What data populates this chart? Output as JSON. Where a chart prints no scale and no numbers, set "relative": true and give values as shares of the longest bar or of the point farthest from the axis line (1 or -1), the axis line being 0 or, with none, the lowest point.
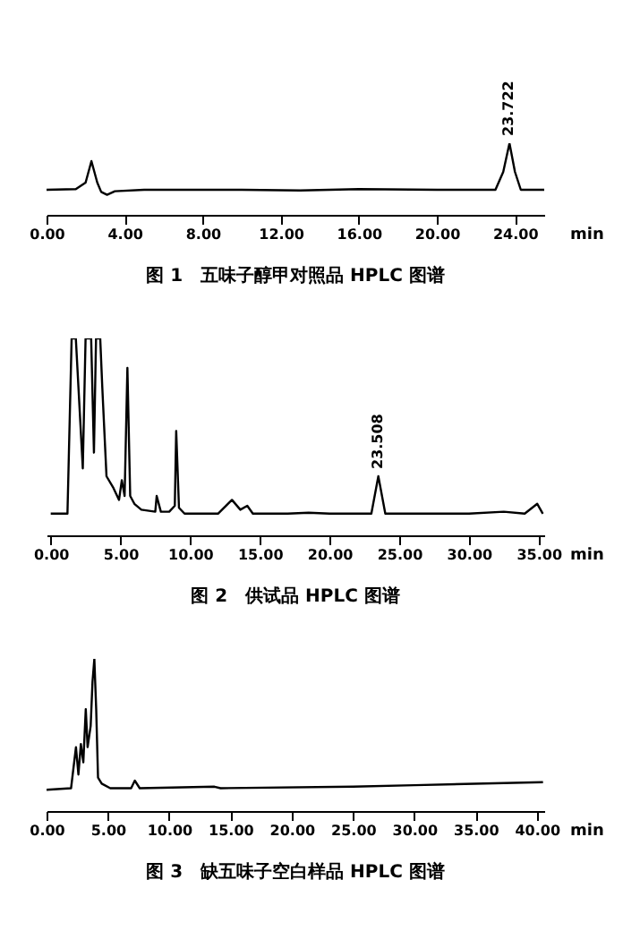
{
  "chart_data": [
    {
      "type": "line",
      "title": "图 1　五味子醇甲对照品 HPLC 图谱",
      "xlabel": "min",
      "relative": true,
      "grid": false,
      "line_style": "solid",
      "xlim": [
        0,
        25.5
      ],
      "xticks": [
        {
          "value": 0,
          "label": "0.00"
        },
        {
          "value": 4,
          "label": "4.00"
        },
        {
          "value": 8,
          "label": "8.00"
        },
        {
          "value": 12,
          "label": "12.00"
        },
        {
          "value": 16,
          "label": "16.00"
        },
        {
          "value": 20,
          "label": "20.00"
        },
        {
          "value": 24,
          "label": "24.00"
        }
      ],
      "x": [
        0,
        1.5,
        2.0,
        2.3,
        2.6,
        2.8,
        3.1,
        3.5,
        5,
        10,
        13,
        16,
        20,
        23.0,
        23.4,
        23.72,
        24.0,
        24.3,
        25.5
      ],
      "series": [
        {
          "color": "#000000",
          "values": [
            0.35,
            0.36,
            0.45,
            0.75,
            0.45,
            0.32,
            0.28,
            0.33,
            0.35,
            0.35,
            0.34,
            0.36,
            0.35,
            0.35,
            0.6,
            1.0,
            0.6,
            0.35,
            0.35
          ]
        }
      ],
      "annotations": [
        {
          "text": "23.722",
          "x": 23.722,
          "y": 1.0
        }
      ]
    },
    {
      "type": "line",
      "title": "图 2　供试品 HPLC 图谱",
      "xlabel": "min",
      "relative": true,
      "grid": false,
      "line_style": "solid",
      "xlim": [
        -0.3,
        35.4
      ],
      "xticks": [
        {
          "value": 0,
          "label": "0.00"
        },
        {
          "value": 5,
          "label": "5.00"
        },
        {
          "value": 10,
          "label": "10.00"
        },
        {
          "value": 15,
          "label": "15.00"
        },
        {
          "value": 20,
          "label": "20.00"
        },
        {
          "value": 25,
          "label": "25.00"
        },
        {
          "value": 30,
          "label": "30.00"
        },
        {
          "value": 35,
          "label": "35.00"
        }
      ],
      "x": [
        0,
        1.2,
        1.5,
        1.8,
        2.3,
        2.5,
        2.9,
        3.1,
        3.25,
        3.55,
        3.7,
        4.0,
        4.5,
        4.9,
        5.1,
        5.3,
        5.5,
        5.7,
        6.0,
        6.5,
        7.5,
        7.6,
        7.9,
        8.5,
        8.9,
        9.0,
        9.2,
        9.6,
        12,
        13,
        13.6,
        14.1,
        14.5,
        17,
        18.5,
        20,
        23,
        23.5,
        24,
        30,
        32.5,
        34,
        34.9,
        35.3
      ],
      "series": [
        {
          "color": "#000000",
          "values": [
            0.11,
            0.11,
            1.0,
            1.0,
            0.34,
            1.0,
            1.0,
            0.42,
            1.0,
            1.0,
            0.75,
            0.3,
            0.24,
            0.18,
            0.28,
            0.2,
            0.85,
            0.2,
            0.16,
            0.13,
            0.12,
            0.2,
            0.12,
            0.12,
            0.15,
            0.53,
            0.14,
            0.11,
            0.11,
            0.18,
            0.13,
            0.15,
            0.11,
            0.11,
            0.115,
            0.11,
            0.11,
            0.3,
            0.11,
            0.11,
            0.12,
            0.11,
            0.16,
            0.11
          ]
        }
      ],
      "annotations": [
        {
          "text": "23.508",
          "x": 23.508,
          "y": 0.3
        }
      ]
    },
    {
      "type": "line",
      "title": "图 3　缺五味子空白样品 HPLC 图谱",
      "xlabel": "min",
      "relative": true,
      "grid": false,
      "line_style": "solid",
      "xlim": [
        0,
        40.6
      ],
      "xticks": [
        {
          "value": 0,
          "label": "0.00"
        },
        {
          "value": 5,
          "label": "5.00"
        },
        {
          "value": 10,
          "label": "10.00"
        },
        {
          "value": 15,
          "label": "15.00"
        },
        {
          "value": 20,
          "label": "20.00"
        },
        {
          "value": 25,
          "label": "25.00"
        },
        {
          "value": 30,
          "label": "30.00"
        },
        {
          "value": 35,
          "label": "35.00"
        },
        {
          "value": 40,
          "label": "40.00"
        }
      ],
      "x": [
        0,
        2.0,
        2.4,
        2.6,
        2.8,
        3.0,
        3.2,
        3.35,
        3.6,
        3.75,
        3.9,
        4.05,
        4.2,
        4.5,
        5.2,
        6.9,
        7.2,
        7.6,
        13.7,
        14.2,
        25,
        30,
        40.5
      ],
      "series": [
        {
          "color": "#000000",
          "values": [
            0.14,
            0.15,
            0.42,
            0.24,
            0.44,
            0.32,
            0.67,
            0.42,
            0.56,
            0.85,
            1.0,
            0.67,
            0.22,
            0.18,
            0.15,
            0.15,
            0.2,
            0.15,
            0.16,
            0.15,
            0.16,
            0.17,
            0.19
          ]
        }
      ]
    }
  ]
}
